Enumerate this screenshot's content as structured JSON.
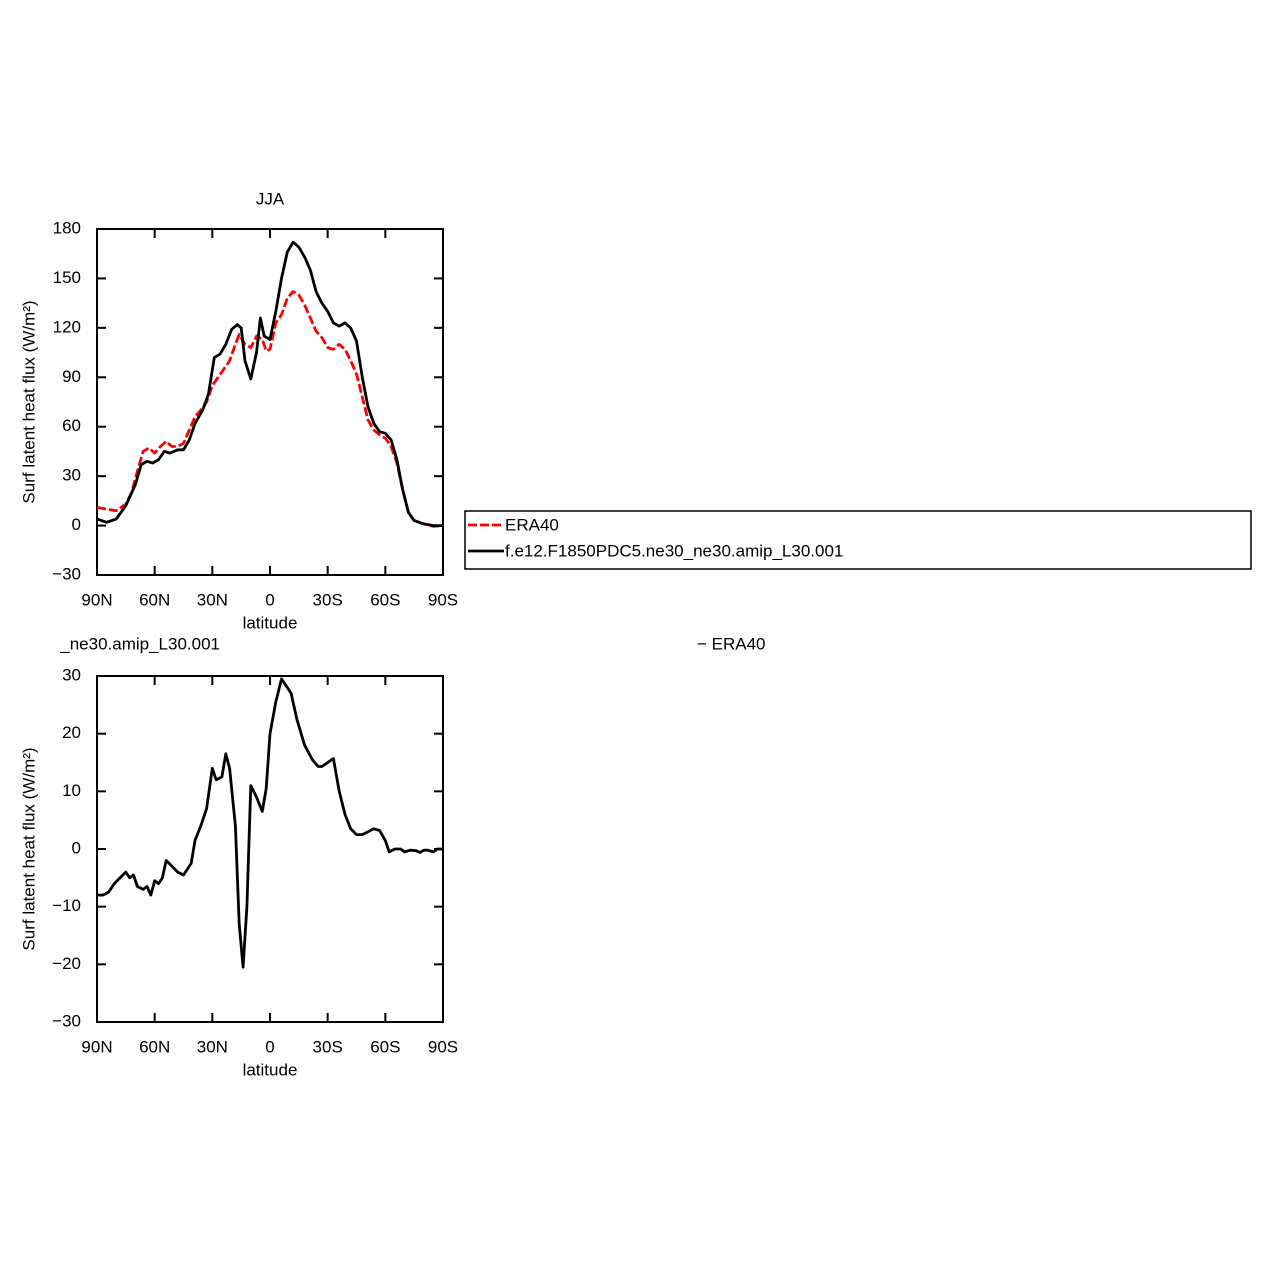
{
  "chart_data": [
    {
      "type": "line",
      "title": "JJA",
      "x_label": "latitude",
      "y_label": "Surf latent heat flux (W/m²)",
      "xlim": [
        90,
        -90
      ],
      "xticks": [
        {
          "value": 90,
          "label": "90N"
        },
        {
          "value": 60,
          "label": "60N"
        },
        {
          "value": 30,
          "label": "30N"
        },
        0,
        {
          "value": -30,
          "label": "30S"
        },
        {
          "value": -60,
          "label": "60S"
        },
        {
          "value": -90,
          "label": "90S"
        }
      ],
      "ylim": [
        -30,
        180
      ],
      "yticks": [
        {
          "value": -30,
          "label": "−30"
        },
        0,
        30,
        60,
        90,
        120,
        150,
        180
      ],
      "legend": "right",
      "series": [
        {
          "name": "ERA40",
          "color": "#ff0000",
          "dash": true,
          "x": [
            90,
            85,
            80,
            75,
            72,
            69,
            66,
            63,
            60,
            57,
            54,
            51,
            48,
            45,
            42,
            39,
            36,
            33,
            30,
            27,
            24,
            21,
            18,
            16,
            13,
            10,
            7,
            4,
            2,
            0,
            -3,
            -6,
            -9,
            -12,
            -15,
            -18,
            -21,
            -24,
            -27,
            -30,
            -33,
            -36,
            -39,
            -42,
            -45,
            -48,
            -51,
            -54,
            -57,
            -60,
            -63,
            -66,
            -69,
            -72,
            -75,
            -80,
            -85,
            -90
          ],
          "values": [
            11,
            10,
            9,
            13,
            20,
            33,
            45,
            47,
            44,
            48,
            51,
            48,
            48,
            50,
            58,
            66,
            70,
            75,
            85,
            90,
            95,
            100,
            110,
            116,
            110,
            108,
            115,
            113,
            106,
            107,
            123,
            128,
            138,
            142,
            140,
            134,
            126,
            118,
            114,
            108,
            107,
            110,
            107,
            100,
            92,
            78,
            64,
            58,
            55,
            53,
            48,
            38,
            22,
            8,
            3,
            1,
            -0.5,
            0
          ]
        },
        {
          "name": "f.e12.F1850PDC5.ne30_ne30.amip_L30.001",
          "color": "#000000",
          "dash": false,
          "x": [
            90,
            85,
            80,
            75,
            70,
            67,
            64,
            61,
            58,
            55,
            52,
            48,
            45,
            42,
            39,
            35,
            32,
            29,
            26,
            23,
            20,
            17,
            15,
            13,
            10,
            7,
            5,
            3,
            0,
            -3,
            -6,
            -9,
            -12,
            -15,
            -18,
            -21,
            -24,
            -27,
            -30,
            -33,
            -36,
            -39,
            -42,
            -45,
            -48,
            -51,
            -54,
            -57,
            -60,
            -63,
            -66,
            -69,
            -72,
            -75,
            -80,
            -85,
            -90
          ],
          "values": [
            4,
            2,
            4,
            12,
            25,
            37,
            39,
            38,
            40,
            45,
            44,
            46,
            46,
            52,
            62,
            70,
            80,
            102,
            104,
            110,
            119,
            122,
            120,
            100,
            89,
            105,
            126,
            115,
            113,
            130,
            150,
            166,
            172,
            169,
            163,
            155,
            142,
            135,
            130,
            123,
            121,
            123,
            120,
            112,
            90,
            72,
            62,
            57,
            56,
            52,
            40,
            22,
            8,
            3,
            1,
            0,
            0
          ]
        }
      ]
    },
    {
      "type": "line",
      "left_string": "_ne30.amip_L30.001",
      "right_string": "− ERA40",
      "x_label": "latitude",
      "y_label": "Surf latent heat flux (W/m²)",
      "xlim": [
        90,
        -90
      ],
      "xticks": [
        {
          "value": 90,
          "label": "90N"
        },
        {
          "value": 60,
          "label": "60N"
        },
        {
          "value": 30,
          "label": "30N"
        },
        0,
        {
          "value": -30,
          "label": "30S"
        },
        {
          "value": -60,
          "label": "60S"
        },
        {
          "value": -90,
          "label": "90S"
        }
      ],
      "ylim": [
        -30,
        30
      ],
      "yticks": [
        {
          "value": -30,
          "label": "−30"
        },
        {
          "value": -20,
          "label": "−20"
        },
        {
          "value": -10,
          "label": "−10"
        },
        0,
        10,
        20,
        30
      ],
      "series": [
        {
          "color": "#000000",
          "dash": false,
          "x": [
            90,
            87,
            84,
            81,
            78,
            75,
            73,
            71,
            69,
            66,
            64,
            62,
            60,
            58,
            56,
            54,
            51,
            48,
            45,
            41,
            39,
            36,
            33,
            30,
            28,
            25,
            23,
            21,
            18,
            16,
            14,
            12,
            10,
            7,
            4,
            2,
            0,
            -3,
            -6,
            -9,
            -11,
            -14,
            -18,
            -22,
            -25,
            -27,
            -30,
            -33,
            -36,
            -39,
            -42,
            -45,
            -48,
            -51,
            -54,
            -57,
            -60,
            -62,
            -65,
            -68,
            -70,
            -73,
            -76,
            -78,
            -80,
            -82,
            -85,
            -87,
            -90
          ],
          "values": [
            -8,
            -8,
            -7.5,
            -6,
            -5,
            -4,
            -5,
            -4.5,
            -6.5,
            -7,
            -6.5,
            -8,
            -5.5,
            -6,
            -5,
            -2,
            -3,
            -4,
            -4.5,
            -2.5,
            1.5,
            4,
            7,
            14,
            12,
            12.5,
            16.5,
            14,
            4,
            -13,
            -20.5,
            -10,
            11,
            9,
            6.5,
            10.5,
            20,
            25.5,
            29.5,
            28,
            27,
            22.5,
            18,
            15.5,
            14.3,
            14.3,
            15,
            15.7,
            10,
            6,
            3.5,
            2.5,
            2.5,
            3,
            3.5,
            3.2,
            1.5,
            -0.5,
            0,
            0,
            -0.5,
            -0.2,
            -0.3,
            -0.6,
            -0.2,
            -0.2,
            -0.5,
            0,
            0
          ]
        }
      ]
    }
  ]
}
